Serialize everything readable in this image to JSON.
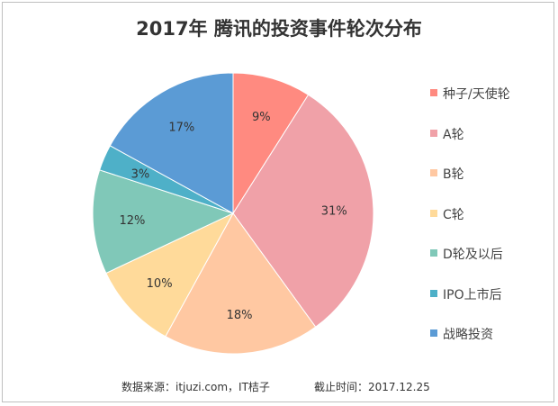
{
  "chart_data": {
    "type": "pie",
    "title": "2017年 腾讯的投资事件轮次分布",
    "categories": [
      "种子/天使轮",
      "A轮",
      "B轮",
      "C轮",
      "D轮及以后",
      "IPO上市后",
      "战略投资"
    ],
    "values": [
      9,
      31,
      18,
      10,
      12,
      3,
      17
    ],
    "labels": [
      "9%",
      "31%",
      "18%",
      "10%",
      "12%",
      "3%",
      "17%"
    ],
    "colors": [
      "#FF8A80",
      "#F0A1A8",
      "#FFC8A2",
      "#FFDA9A",
      "#80C8B8",
      "#4EB0C8",
      "#5B9BD5"
    ],
    "legend": "right",
    "start": "top, clockwise"
  },
  "footer": {
    "source": "数据来源：itjuzi.com，IT桔子",
    "date": "截止时间：2017.12.25"
  }
}
